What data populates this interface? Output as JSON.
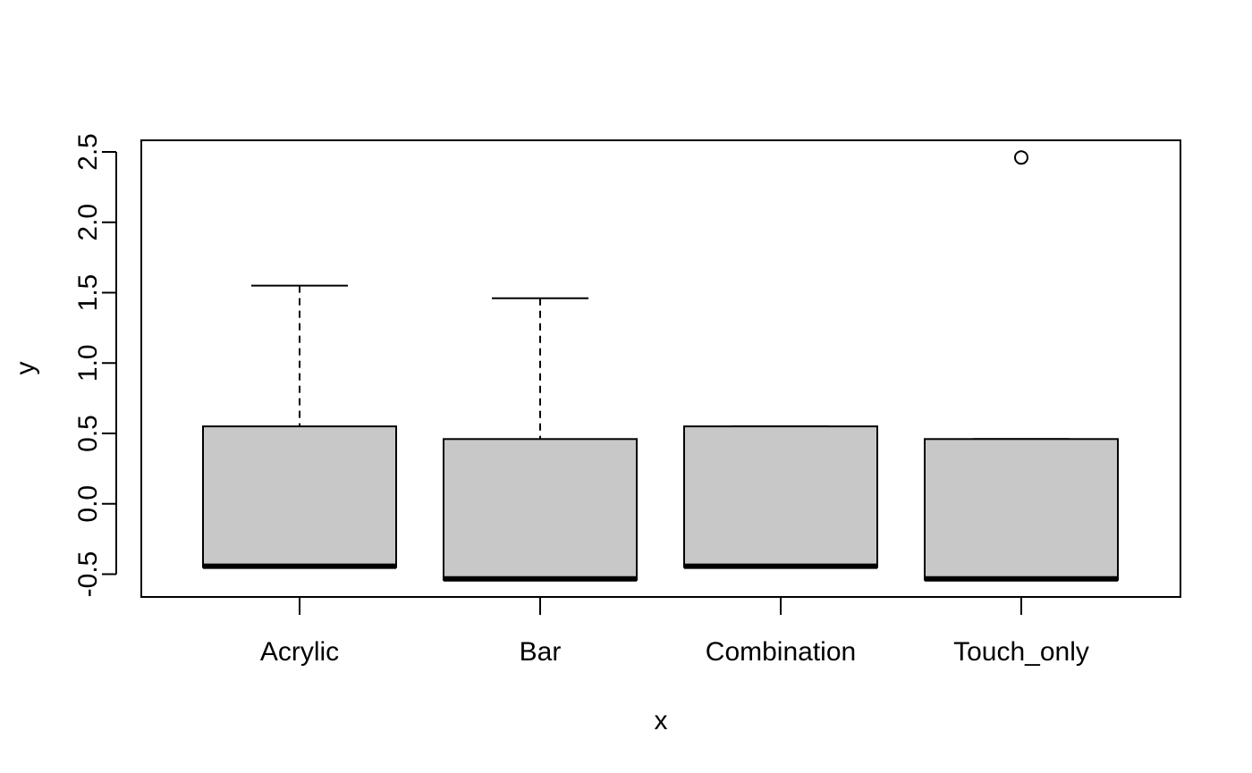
{
  "chart_data": {
    "type": "boxplot",
    "title": "",
    "xlabel": "x",
    "ylabel": "y",
    "ylim": [
      -0.66,
      2.58
    ],
    "yticks": [
      -0.5,
      0.0,
      0.5,
      1.0,
      1.5,
      2.0,
      2.5
    ],
    "ytick_labels": [
      "-0.5",
      "0.0",
      "0.5",
      "1.0",
      "1.5",
      "2.0",
      "2.5"
    ],
    "grid": false,
    "box_fill": "#c8c8c8",
    "categories": [
      "Acrylic",
      "Bar",
      "Combination",
      "Touch_only"
    ],
    "boxes": [
      {
        "category": "Acrylic",
        "whisker_low": -0.45,
        "q1": -0.45,
        "median": -0.45,
        "q3": 0.55,
        "whisker_high": 1.55,
        "outliers": []
      },
      {
        "category": "Bar",
        "whisker_low": -0.54,
        "q1": -0.54,
        "median": -0.54,
        "q3": 0.46,
        "whisker_high": 1.46,
        "outliers": []
      },
      {
        "category": "Combination",
        "whisker_low": -0.45,
        "q1": -0.45,
        "median": -0.45,
        "q3": 0.55,
        "whisker_high": 0.55,
        "outliers": []
      },
      {
        "category": "Touch_only",
        "whisker_low": -0.54,
        "q1": -0.54,
        "median": -0.54,
        "q3": 0.46,
        "whisker_high": 0.46,
        "outliers": [
          2.46
        ]
      }
    ]
  }
}
